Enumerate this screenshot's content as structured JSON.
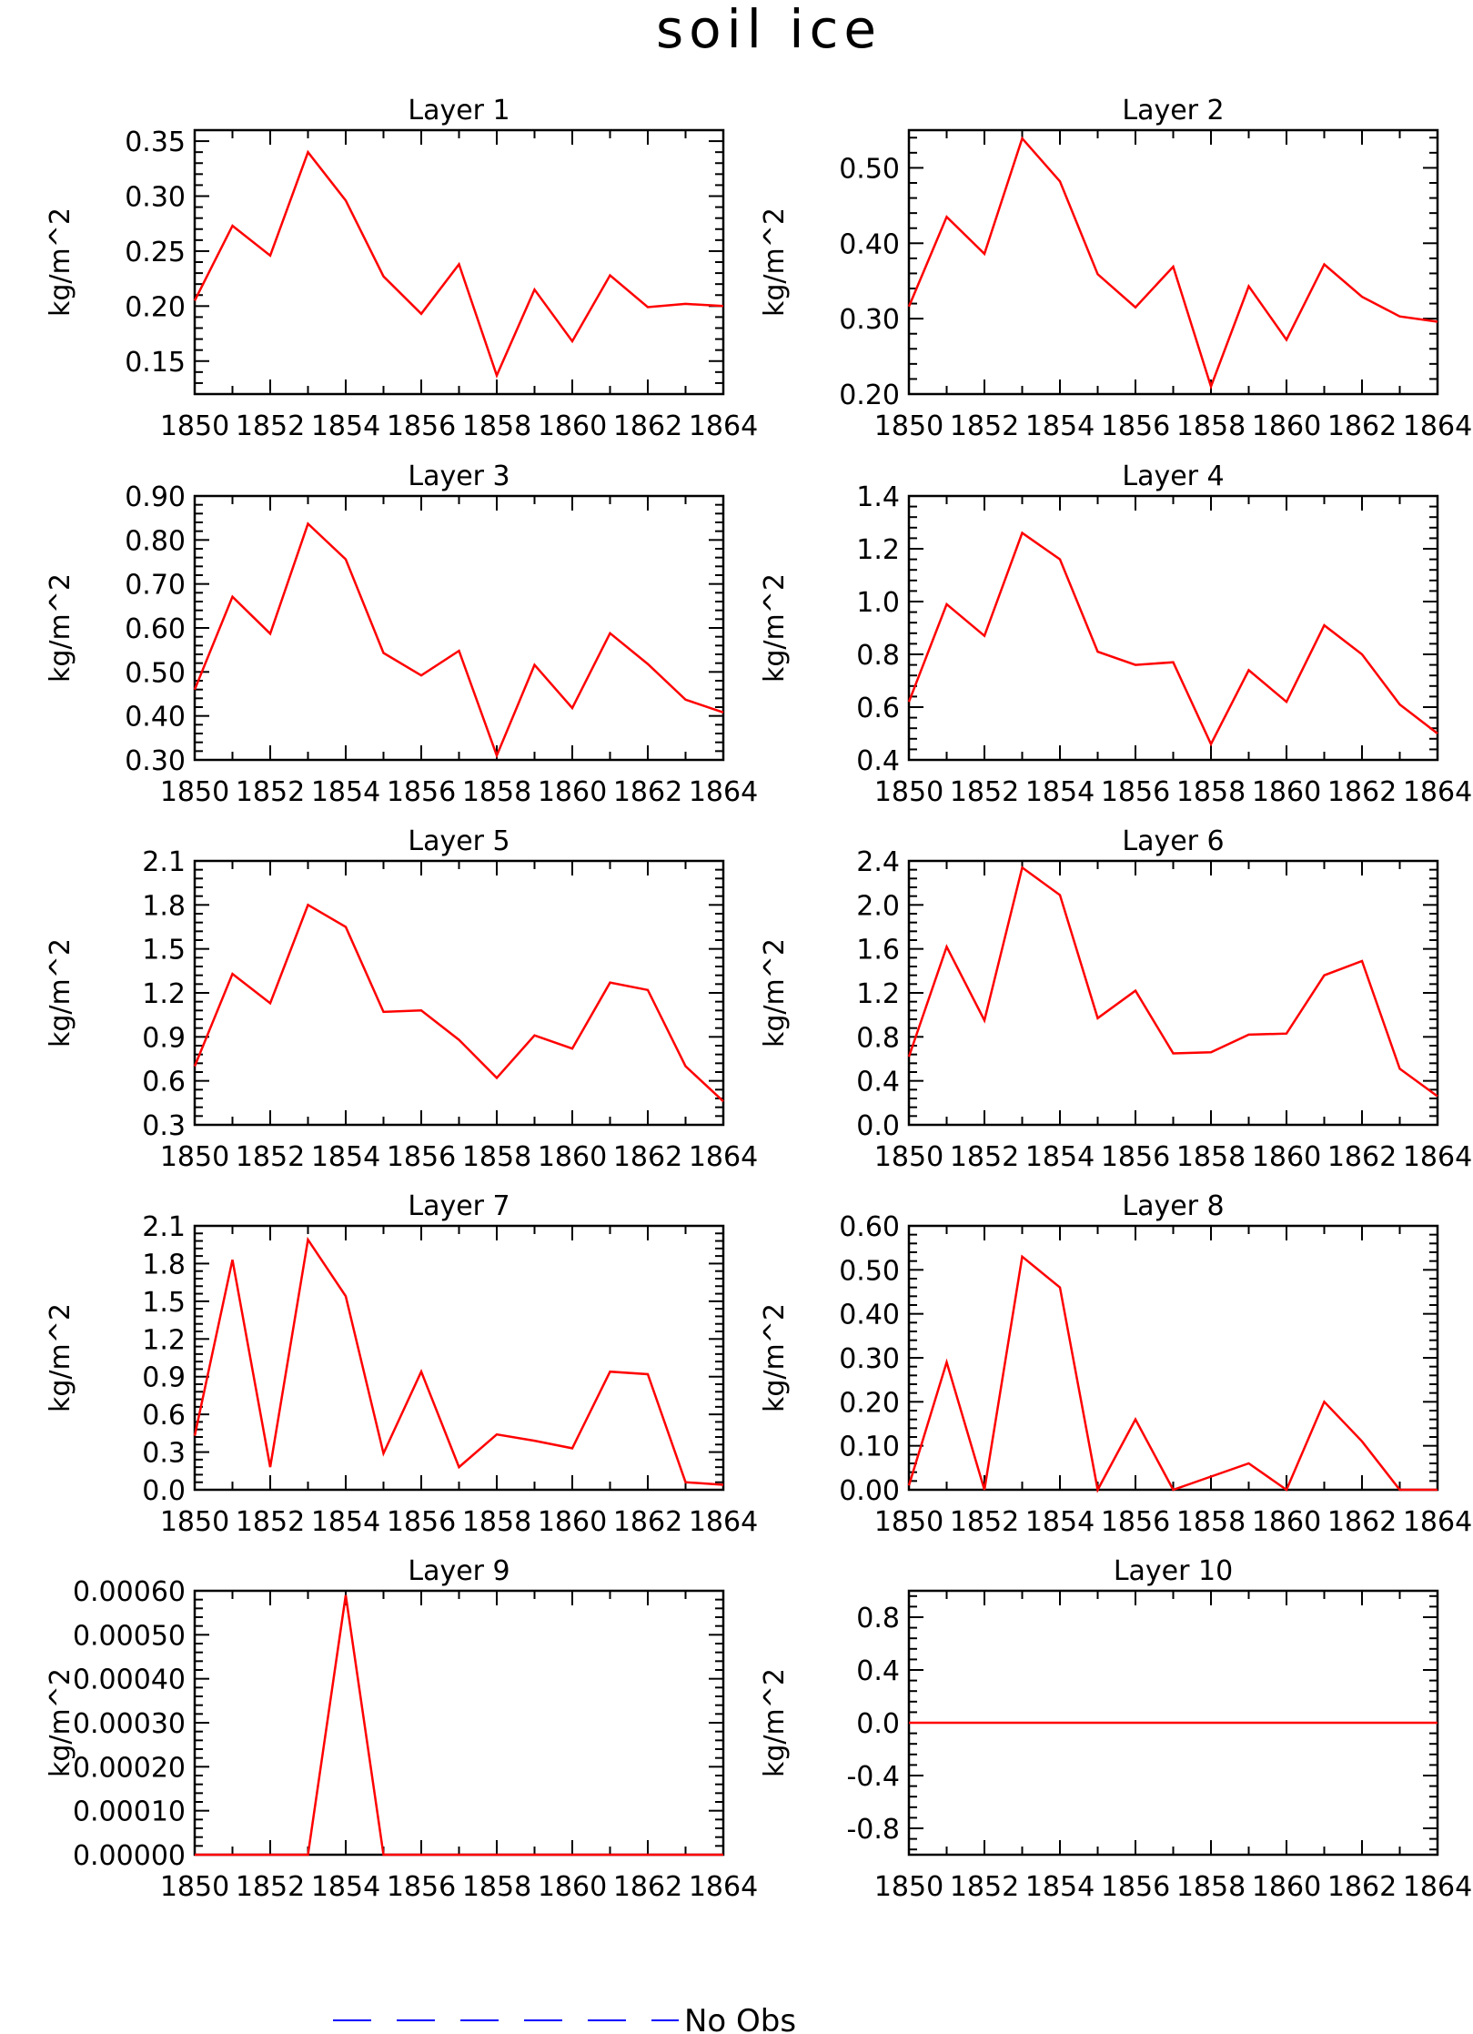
{
  "title": "soil ice",
  "legend": {
    "label": "No Obs",
    "color": "#0000ff",
    "style": "dashed"
  },
  "chart_data": [
    {
      "type": "line",
      "title": "Layer 1",
      "ylabel": "kg/m^2",
      "xlim": [
        1850,
        1864
      ],
      "xticks": [
        "1850",
        "1852",
        "1854",
        "1856",
        "1858",
        "1860",
        "1862",
        "1864"
      ],
      "ylim": [
        0.12,
        0.36
      ],
      "yticks": [
        "0.15",
        "0.20",
        "0.25",
        "0.30",
        "0.35"
      ],
      "series": [
        {
          "color": "#ff0000",
          "x": [
            1850,
            1851,
            1852,
            1853,
            1854,
            1855,
            1856,
            1857,
            1858,
            1859,
            1860,
            1861,
            1862,
            1863,
            1864
          ],
          "values": [
            0.205,
            0.273,
            0.246,
            0.34,
            0.296,
            0.227,
            0.193,
            0.238,
            0.137,
            0.215,
            0.168,
            0.228,
            0.199,
            0.202,
            0.2
          ]
        }
      ]
    },
    {
      "type": "line",
      "title": "Layer 2",
      "ylabel": "kg/m^2",
      "xlim": [
        1850,
        1864
      ],
      "xticks": [
        "1850",
        "1852",
        "1854",
        "1856",
        "1858",
        "1860",
        "1862",
        "1864"
      ],
      "ylim": [
        0.2,
        0.55
      ],
      "yticks": [
        "0.20",
        "0.30",
        "0.40",
        "0.50"
      ],
      "series": [
        {
          "color": "#ff0000",
          "x": [
            1850,
            1851,
            1852,
            1853,
            1854,
            1855,
            1856,
            1857,
            1858,
            1859,
            1860,
            1861,
            1862,
            1863,
            1864
          ],
          "values": [
            0.316,
            0.435,
            0.386,
            0.539,
            0.482,
            0.359,
            0.315,
            0.369,
            0.21,
            0.343,
            0.272,
            0.372,
            0.329,
            0.303,
            0.296
          ]
        }
      ]
    },
    {
      "type": "line",
      "title": "Layer 3",
      "ylabel": "kg/m^2",
      "xlim": [
        1850,
        1864
      ],
      "xticks": [
        "1850",
        "1852",
        "1854",
        "1856",
        "1858",
        "1860",
        "1862",
        "1864"
      ],
      "ylim": [
        0.3,
        0.9
      ],
      "yticks": [
        "0.30",
        "0.40",
        "0.50",
        "0.60",
        "0.70",
        "0.80",
        "0.90"
      ],
      "series": [
        {
          "color": "#ff0000",
          "x": [
            1850,
            1851,
            1852,
            1853,
            1854,
            1855,
            1856,
            1857,
            1858,
            1859,
            1860,
            1861,
            1862,
            1863,
            1864
          ],
          "values": [
            0.46,
            0.671,
            0.587,
            0.837,
            0.756,
            0.543,
            0.492,
            0.548,
            0.31,
            0.516,
            0.418,
            0.588,
            0.518,
            0.437,
            0.408
          ]
        }
      ]
    },
    {
      "type": "line",
      "title": "Layer 4",
      "ylabel": "kg/m^2",
      "xlim": [
        1850,
        1864
      ],
      "xticks": [
        "1850",
        "1852",
        "1854",
        "1856",
        "1858",
        "1860",
        "1862",
        "1864"
      ],
      "ylim": [
        0.4,
        1.4
      ],
      "yticks": [
        "0.4",
        "0.6",
        "0.8",
        "1.0",
        "1.2",
        "1.4"
      ],
      "series": [
        {
          "color": "#ff0000",
          "x": [
            1850,
            1851,
            1852,
            1853,
            1854,
            1855,
            1856,
            1857,
            1858,
            1859,
            1860,
            1861,
            1862,
            1863,
            1864
          ],
          "values": [
            0.62,
            0.99,
            0.87,
            1.26,
            1.16,
            0.81,
            0.76,
            0.77,
            0.46,
            0.74,
            0.62,
            0.91,
            0.8,
            0.61,
            0.5
          ]
        }
      ]
    },
    {
      "type": "line",
      "title": "Layer 5",
      "ylabel": "kg/m^2",
      "xlim": [
        1850,
        1864
      ],
      "xticks": [
        "1850",
        "1852",
        "1854",
        "1856",
        "1858",
        "1860",
        "1862",
        "1864"
      ],
      "ylim": [
        0.3,
        2.1
      ],
      "yticks": [
        "0.3",
        "0.6",
        "0.9",
        "1.2",
        "1.5",
        "1.8",
        "2.1"
      ],
      "series": [
        {
          "color": "#ff0000",
          "x": [
            1850,
            1851,
            1852,
            1853,
            1854,
            1855,
            1856,
            1857,
            1858,
            1859,
            1860,
            1861,
            1862,
            1863,
            1864
          ],
          "values": [
            0.7,
            1.33,
            1.13,
            1.8,
            1.65,
            1.07,
            1.08,
            0.88,
            0.62,
            0.91,
            0.82,
            1.27,
            1.22,
            0.7,
            0.46
          ]
        }
      ]
    },
    {
      "type": "line",
      "title": "Layer 6",
      "ylabel": "kg/m^2",
      "xlim": [
        1850,
        1864
      ],
      "xticks": [
        "1850",
        "1852",
        "1854",
        "1856",
        "1858",
        "1860",
        "1862",
        "1864"
      ],
      "ylim": [
        0.0,
        2.4
      ],
      "yticks": [
        "0.0",
        "0.4",
        "0.8",
        "1.2",
        "1.6",
        "2.0",
        "2.4"
      ],
      "series": [
        {
          "color": "#ff0000",
          "x": [
            1850,
            1851,
            1852,
            1853,
            1854,
            1855,
            1856,
            1857,
            1858,
            1859,
            1860,
            1861,
            1862,
            1863,
            1864
          ],
          "values": [
            0.62,
            1.62,
            0.95,
            2.34,
            2.09,
            0.97,
            1.22,
            0.65,
            0.66,
            0.82,
            0.83,
            1.36,
            1.49,
            0.51,
            0.26
          ]
        }
      ]
    },
    {
      "type": "line",
      "title": "Layer 7",
      "ylabel": "kg/m^2",
      "xlim": [
        1850,
        1864
      ],
      "xticks": [
        "1850",
        "1852",
        "1854",
        "1856",
        "1858",
        "1860",
        "1862",
        "1864"
      ],
      "ylim": [
        0.0,
        2.1
      ],
      "yticks": [
        "0.0",
        "0.3",
        "0.6",
        "0.9",
        "1.2",
        "1.5",
        "1.8",
        "2.1"
      ],
      "series": [
        {
          "color": "#ff0000",
          "x": [
            1850,
            1851,
            1852,
            1853,
            1854,
            1855,
            1856,
            1857,
            1858,
            1859,
            1860,
            1861,
            1862,
            1863,
            1864
          ],
          "values": [
            0.43,
            1.83,
            0.18,
            1.99,
            1.54,
            0.29,
            0.94,
            0.18,
            0.44,
            0.39,
            0.33,
            0.94,
            0.92,
            0.06,
            0.04
          ]
        }
      ]
    },
    {
      "type": "line",
      "title": "Layer 8",
      "ylabel": "kg/m^2",
      "xlim": [
        1850,
        1864
      ],
      "xticks": [
        "1850",
        "1852",
        "1854",
        "1856",
        "1858",
        "1860",
        "1862",
        "1864"
      ],
      "ylim": [
        0.0,
        0.6
      ],
      "yticks": [
        "0.00",
        "0.10",
        "0.20",
        "0.30",
        "0.40",
        "0.50",
        "0.60"
      ],
      "series": [
        {
          "color": "#ff0000",
          "x": [
            1850,
            1851,
            1852,
            1853,
            1854,
            1855,
            1856,
            1857,
            1858,
            1859,
            1860,
            1861,
            1862,
            1863,
            1864
          ],
          "values": [
            0.01,
            0.29,
            0.0,
            0.53,
            0.46,
            0.0,
            0.16,
            0.0,
            0.03,
            0.06,
            0.0,
            0.2,
            0.11,
            0.0,
            0.0
          ]
        }
      ]
    },
    {
      "type": "line",
      "title": "Layer 9",
      "ylabel": "kg/m^2",
      "xlim": [
        1850,
        1864
      ],
      "xticks": [
        "1850",
        "1852",
        "1854",
        "1856",
        "1858",
        "1860",
        "1862",
        "1864"
      ],
      "ylim": [
        0.0,
        0.0006
      ],
      "yticks": [
        "0.00000",
        "0.00010",
        "0.00020",
        "0.00030",
        "0.00040",
        "0.00050",
        "0.00060"
      ],
      "series": [
        {
          "color": "#ff0000",
          "x": [
            1850,
            1851,
            1852,
            1853,
            1854,
            1855,
            1856,
            1857,
            1858,
            1859,
            1860,
            1861,
            1862,
            1863,
            1864
          ],
          "values": [
            0,
            0,
            0,
            0,
            0.00059,
            0,
            0,
            0,
            0,
            0,
            0,
            0,
            0,
            0,
            0
          ]
        }
      ]
    },
    {
      "type": "line",
      "title": "Layer 10",
      "ylabel": "kg/m^2",
      "xlim": [
        1850,
        1864
      ],
      "xticks": [
        "1850",
        "1852",
        "1854",
        "1856",
        "1858",
        "1860",
        "1862",
        "1864"
      ],
      "ylim": [
        -1.0,
        1.0
      ],
      "yticks": [
        "-0.8",
        "-0.4",
        "0.0",
        "0.4",
        "0.8"
      ],
      "series": [
        {
          "color": "#ff0000",
          "x": [
            1850,
            1851,
            1852,
            1853,
            1854,
            1855,
            1856,
            1857,
            1858,
            1859,
            1860,
            1861,
            1862,
            1863,
            1864
          ],
          "values": [
            0,
            0,
            0,
            0,
            0,
            0,
            0,
            0,
            0,
            0,
            0,
            0,
            0,
            0,
            0
          ]
        }
      ]
    }
  ]
}
